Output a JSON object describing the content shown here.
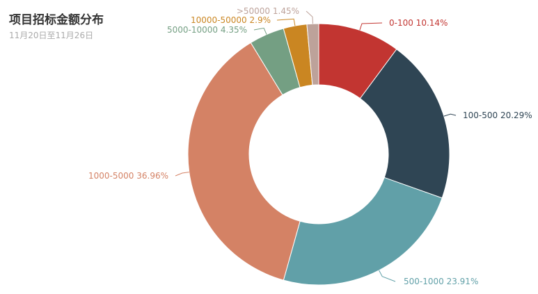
{
  "chart_data": {
    "type": "pie",
    "title": "项目招标金额分布",
    "subtitle": "11月20日至11月26日",
    "slices": [
      {
        "label": "0-100 10.14%",
        "category": "0-100",
        "value": 10.14,
        "color": "#c23531"
      },
      {
        "label": "100-500 20.29%",
        "category": "100-500",
        "value": 20.29,
        "color": "#2f4554"
      },
      {
        "label": "500-1000 23.91%",
        "category": "500-1000",
        "value": 23.91,
        "color": "#61a0a8"
      },
      {
        "label": "1000-5000 36.96%",
        "category": "1000-5000",
        "value": 36.96,
        "color": "#d48265"
      },
      {
        "label": "5000-10000 4.35%",
        "category": "5000-10000",
        "value": 4.35,
        "color": "#749f83"
      },
      {
        "label": "10000-50000 2.9%",
        "category": "10000-50000",
        "value": 2.9,
        "color": "#ca8622"
      },
      {
        "label": ">50000 1.45%",
        "category": ">50000",
        "value": 1.45,
        "color": "#bda29a"
      }
    ]
  }
}
